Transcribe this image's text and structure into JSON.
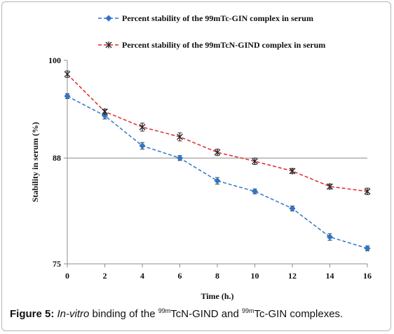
{
  "chart_data": {
    "type": "line",
    "xlabel": "Time (h.)",
    "ylabel": "Stability in serum (%)",
    "xlim": [
      0,
      16
    ],
    "ylim": [
      75,
      100
    ],
    "x_ticks": [
      "0",
      "2",
      "4",
      "6",
      "8",
      "10",
      "12",
      "14",
      "16"
    ],
    "y_ticks": [
      "75",
      "88",
      "100"
    ],
    "reference_line": 88,
    "x": [
      0,
      2,
      4,
      6,
      8,
      10,
      12,
      14,
      16
    ],
    "series": [
      {
        "name": "Percent stability of the 99mTc-GIN complex in serum",
        "color": "#2e75c8",
        "line_style": "dashed",
        "marker": "diamond",
        "values": [
          95.6,
          93.2,
          89.5,
          88.0,
          85.2,
          83.9,
          81.8,
          78.3,
          76.9
        ],
        "errors": [
          0.3,
          0.4,
          0.4,
          0.3,
          0.4,
          0.3,
          0.3,
          0.4,
          0.3
        ]
      },
      {
        "name": "Percent stability of the 99mTcN-GIND complex in serum",
        "color": "#e02828",
        "line_style": "dashed",
        "marker": "star",
        "values": [
          98.3,
          93.7,
          91.8,
          90.6,
          88.7,
          87.6,
          86.4,
          84.5,
          83.9
        ],
        "errors": [
          0.4,
          0.3,
          0.5,
          0.5,
          0.4,
          0.4,
          0.3,
          0.3,
          0.4
        ]
      }
    ]
  },
  "caption": {
    "label": "Figure 5:",
    "italic": "In-vitro",
    "text1": " binding of the ",
    "sup1": "99m",
    "text2": "TcN-GIND and ",
    "sup2": "99m",
    "text3": "Tc-GIN complexes."
  }
}
